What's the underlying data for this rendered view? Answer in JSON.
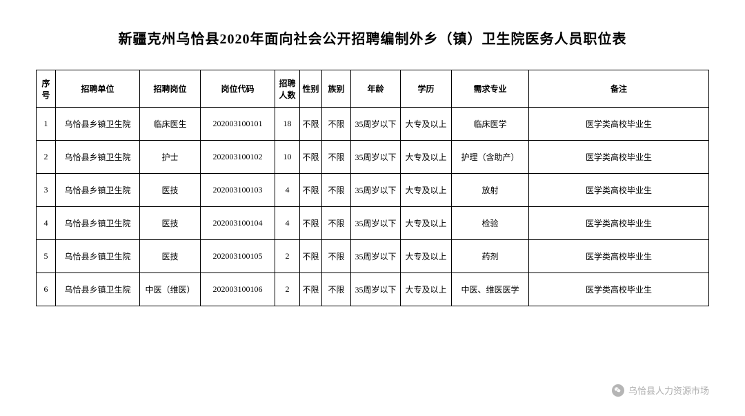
{
  "title": "新疆克州乌恰县2020年面向社会公开招聘编制外乡（镇）卫生院医务人员职位表",
  "columns": {
    "seq": "序号",
    "unit": "招聘单位",
    "position": "招聘岗位",
    "code": "岗位代码",
    "count": "招聘人数",
    "gender": "性别",
    "ethnic": "族别",
    "age": "年龄",
    "edu": "学历",
    "major": "需求专业",
    "note": "备注"
  },
  "rows": [
    {
      "seq": "1",
      "unit": "乌恰县乡镇卫生院",
      "position": "临床医生",
      "code": "202003100101",
      "count": "18",
      "gender": "不限",
      "ethnic": "不限",
      "age": "35周岁以下",
      "edu": "大专及以上",
      "major": "临床医学",
      "note": "医学类高校毕业生"
    },
    {
      "seq": "2",
      "unit": "乌恰县乡镇卫生院",
      "position": "护士",
      "code": "202003100102",
      "count": "10",
      "gender": "不限",
      "ethnic": "不限",
      "age": "35周岁以下",
      "edu": "大专及以上",
      "major": "护理（含助产）",
      "note": "医学类高校毕业生"
    },
    {
      "seq": "3",
      "unit": "乌恰县乡镇卫生院",
      "position": "医技",
      "code": "202003100103",
      "count": "4",
      "gender": "不限",
      "ethnic": "不限",
      "age": "35周岁以下",
      "edu": "大专及以上",
      "major": "放射",
      "note": "医学类高校毕业生"
    },
    {
      "seq": "4",
      "unit": "乌恰县乡镇卫生院",
      "position": "医技",
      "code": "202003100104",
      "count": "4",
      "gender": "不限",
      "ethnic": "不限",
      "age": "35周岁以下",
      "edu": "大专及以上",
      "major": "检验",
      "note": "医学类高校毕业生"
    },
    {
      "seq": "5",
      "unit": "乌恰县乡镇卫生院",
      "position": "医技",
      "code": "202003100105",
      "count": "2",
      "gender": "不限",
      "ethnic": "不限",
      "age": "35周岁以下",
      "edu": "大专及以上",
      "major": "药剂",
      "note": "医学类高校毕业生"
    },
    {
      "seq": "6",
      "unit": "乌恰县乡镇卫生院",
      "position": "中医（维医）",
      "code": "202003100106",
      "count": "2",
      "gender": "不限",
      "ethnic": "不限",
      "age": "35周岁以下",
      "edu": "大专及以上",
      "major": "中医、维医医学",
      "note": "医学类高校毕业生"
    }
  ],
  "watermark": "乌恰县人力资源市场",
  "styling": {
    "background_color": "#ffffff",
    "title_fontsize": 20,
    "title_color": "#000000",
    "header_fontsize": 12,
    "cell_fontsize": 12,
    "border_color": "#000000",
    "text_color": "#000000",
    "watermark_color": "#aeaeae",
    "watermark_fontsize": 13,
    "header_row_height": 54,
    "data_row_height": 48,
    "font_family": "SimSun"
  }
}
